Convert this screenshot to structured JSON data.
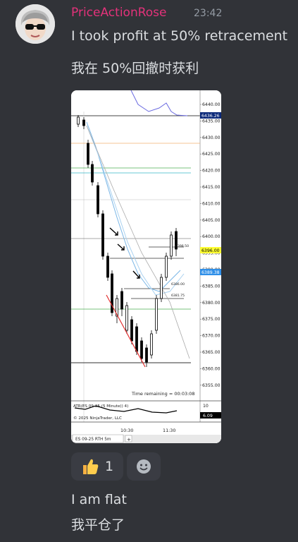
{
  "message": {
    "author": "PriceActionRose",
    "timestamp": "23:42",
    "lines": [
      "I took profit at 50% retracement",
      "我在 50%回撤时获利"
    ],
    "followup": [
      "I am flat",
      "我平仓了"
    ]
  },
  "reactions": [
    {
      "emoji": "thumbs-up-icon",
      "count": "1"
    },
    {
      "emoji": "add-reaction-icon"
    }
  ],
  "attachment": {
    "price_axis": [
      "6440.00",
      "6435.00",
      "6430.00",
      "6425.00",
      "6420.00",
      "6415.00",
      "6410.00",
      "6405.00",
      "6400.00",
      "6395.00",
      "6390.00",
      "6385.00",
      "6380.00",
      "6375.00",
      "6370.00",
      "6365.00",
      "6360.00",
      "6355.00"
    ],
    "price_tags": [
      {
        "label": "6436.26",
        "color": "#0c2a7a",
        "text_color": "#ffffff"
      },
      {
        "label": "6396.00",
        "color": "#ffff33",
        "text_color": "#000000"
      },
      {
        "label": "6389.38",
        "color": "#2f8fe8",
        "text_color": "#ffffff"
      }
    ],
    "small_labels": [
      "6398.50",
      "6386.00",
      "6381.75"
    ],
    "time_remaining": "Time remaining = 00:03:08",
    "atr_label": "ATR(ES 09-25 (5 Minute)) 4)",
    "atr_axis": "10",
    "atr_value": "6.09",
    "copyright": "© 2025 NinjaTrader, LLC",
    "time_labels": [
      "10:30",
      "11:30"
    ],
    "tab_label": "ES 09-25 RTH 5m",
    "tab_add": "+"
  }
}
